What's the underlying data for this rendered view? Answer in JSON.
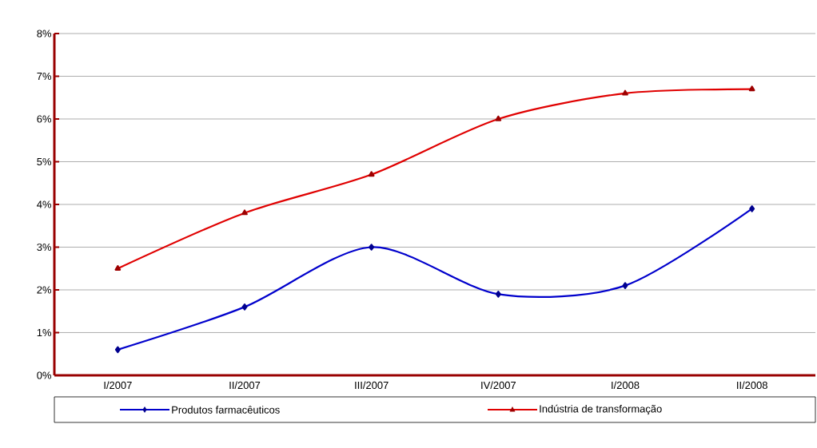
{
  "chart_data": {
    "type": "line",
    "categories": [
      "I/2007",
      "II/2007",
      "III/2007",
      "IV/2007",
      "I/2008",
      "II/2008"
    ],
    "series": [
      {
        "name": "Produtos farmacêuticos",
        "color": "#0000cc",
        "marker": "diamond",
        "values": [
          0.6,
          1.6,
          3.0,
          1.9,
          2.1,
          3.9
        ]
      },
      {
        "name": "Indústria de transformação",
        "color": "#e00000",
        "marker": "triangle",
        "values": [
          2.5,
          3.8,
          4.7,
          6.0,
          6.6,
          6.7
        ]
      }
    ],
    "ylim": [
      0,
      8
    ],
    "yticks": [
      {
        "value": 0,
        "label": "0%"
      },
      {
        "value": 1,
        "label": "1%"
      },
      {
        "value": 2,
        "label": "2%"
      },
      {
        "value": 3,
        "label": "3%"
      },
      {
        "value": 4,
        "label": "4%"
      },
      {
        "value": 5,
        "label": "5%"
      },
      {
        "value": 6,
        "label": "6%"
      },
      {
        "value": 7,
        "label": "7%"
      },
      {
        "value": 8,
        "label": "8%"
      }
    ],
    "grid": "y",
    "legend": "bottom",
    "line_style": "solid"
  }
}
